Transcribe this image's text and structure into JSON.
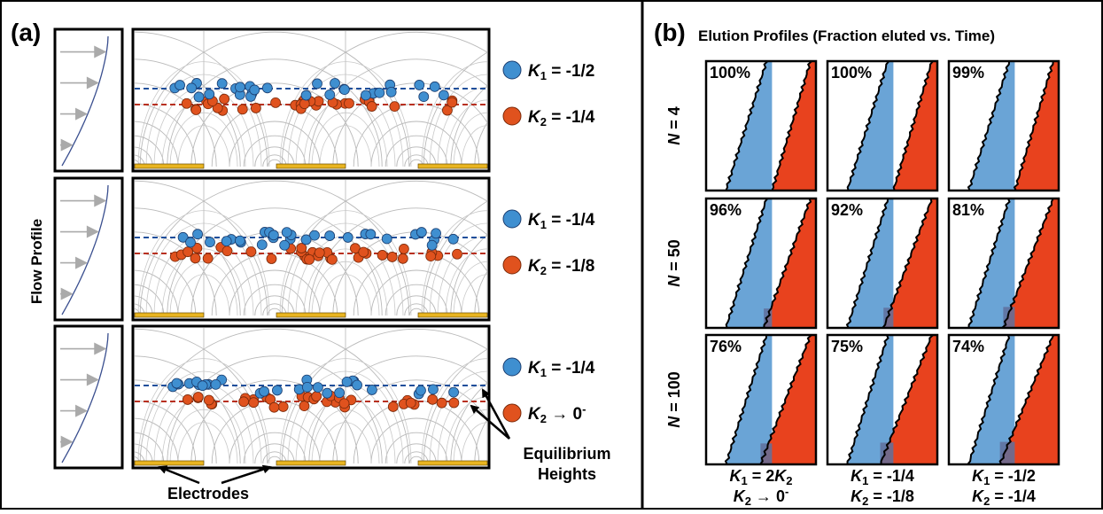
{
  "panel_a": {
    "label": "(a)",
    "flow_profile_label": "Flow Profile",
    "rows": [
      {
        "k1": "-1/2",
        "k2": "-1/4",
        "k2_is_limit": false
      },
      {
        "k1": "-1/4",
        "k2": "-1/8",
        "k2_is_limit": false
      },
      {
        "k1": "-1/4",
        "k2": "0",
        "k2_is_limit": true
      }
    ],
    "electrodes_label": "Electrodes",
    "equilibrium_label_line1": "Equilibrium",
    "equilibrium_label_line2": "Heights",
    "colors": {
      "blue_particle": "#3f8fd0",
      "orange_particle": "#e0521e",
      "electrode": "#e9b520",
      "blue_line": "#1f4f9b",
      "red_line": "#b8301f"
    }
  },
  "panel_b": {
    "label": "(b)",
    "title": "Elution Profiles (Fraction eluted vs. Time)",
    "row_labels": [
      {
        "var": "N",
        "value": "4"
      },
      {
        "var": "N",
        "value": "50"
      },
      {
        "var": "N",
        "value": "100"
      }
    ],
    "percents": [
      [
        "100%",
        "100%",
        "99%"
      ],
      [
        "96%",
        "92%",
        "81%"
      ],
      [
        "76%",
        "75%",
        "74%"
      ]
    ],
    "cols": [
      {
        "line1": {
          "lhs": "K",
          "lhs_sub": "1",
          "rhs": "2K",
          "rhs_sub": "2",
          "op": "="
        },
        "line2": {
          "lhs": "K",
          "lhs_sub": "2",
          "op": "→",
          "rhs": "0",
          "rhs_sup": "-"
        }
      },
      {
        "line1": {
          "lhs": "K",
          "lhs_sub": "1",
          "rhs": "-1/4",
          "op": "="
        },
        "line2": {
          "lhs": "K",
          "lhs_sub": "2",
          "op": "=",
          "rhs": "-1/8"
        }
      },
      {
        "line1": {
          "lhs": "K",
          "lhs_sub": "1",
          "rhs": "-1/2",
          "op": "="
        },
        "line2": {
          "lhs": "K",
          "lhs_sub": "2",
          "op": "=",
          "rhs": "-1/4"
        }
      }
    ],
    "colors": {
      "blue_fill": "#6aa4d6",
      "red_fill": "#e8421e",
      "overlap_fill": "#5f709c"
    }
  }
}
